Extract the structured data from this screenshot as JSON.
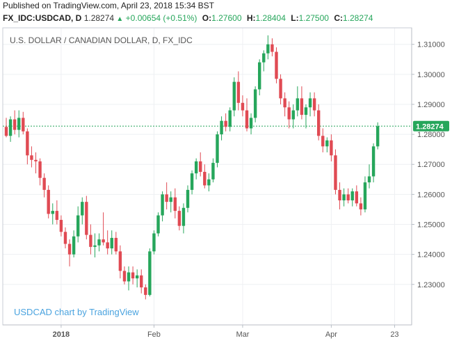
{
  "header": {
    "published": "Published on TradingView.com, April 23, 2018 15:34 BST",
    "symbol": "FX_IDC:USDCAD, D",
    "last": "1.28274",
    "change": "+0.00654 (+0.51%)",
    "open_label": "O:",
    "open": "1.27600",
    "high_label": "H:",
    "high": "1.28404",
    "low_label": "L:",
    "low": "1.27500",
    "close_label": "C:",
    "close": "1.28274"
  },
  "colors": {
    "up": "#26a65b",
    "down": "#e04a53",
    "grid": "#eef0f3",
    "axis": "#b8bec6",
    "price_line": "#26a65b"
  },
  "chart_data": {
    "type": "candlestick",
    "title": "U.S. DOLLAR / CANADIAN DOLLAR, D, FX_IDC",
    "watermark": "USDCAD chart by TradingView",
    "y_ticks": [
      "1.31000",
      "1.30000",
      "1.29000",
      "1.28000",
      "1.27000",
      "1.26000",
      "1.25000",
      "1.24000",
      "1.23000"
    ],
    "ylim": [
      1.2165,
      1.3155
    ],
    "x_labels": [
      "2018",
      "Feb",
      "Mar",
      "Apr",
      "23"
    ],
    "x_label_index": [
      13,
      35,
      56,
      77,
      92
    ],
    "last_price_label": "1.28274",
    "last_price": 1.28274,
    "candles": [
      [
        1.2825,
        1.2855,
        1.279,
        1.2795
      ],
      [
        1.2795,
        1.286,
        1.2775,
        1.285
      ],
      [
        1.285,
        1.288,
        1.28,
        1.2815
      ],
      [
        1.2815,
        1.288,
        1.279,
        1.2855
      ],
      [
        1.2855,
        1.2875,
        1.28,
        1.281
      ],
      [
        1.281,
        1.282,
        1.27,
        1.273
      ],
      [
        1.273,
        1.276,
        1.269,
        1.2715
      ],
      [
        1.2715,
        1.274,
        1.267,
        1.271
      ],
      [
        1.271,
        1.272,
        1.263,
        1.2655
      ],
      [
        1.2655,
        1.267,
        1.259,
        1.2615
      ],
      [
        1.2615,
        1.263,
        1.252,
        1.2535
      ],
      [
        1.2535,
        1.257,
        1.25,
        1.2545
      ],
      [
        1.2545,
        1.258,
        1.25,
        1.2515
      ],
      [
        1.2515,
        1.253,
        1.246,
        1.2475
      ],
      [
        1.2475,
        1.249,
        1.242,
        1.2435
      ],
      [
        1.2435,
        1.245,
        1.236,
        1.24
      ],
      [
        1.24,
        1.248,
        1.239,
        1.246
      ],
      [
        1.246,
        1.256,
        1.244,
        1.253
      ],
      [
        1.253,
        1.259,
        1.25,
        1.2575
      ],
      [
        1.2575,
        1.2595,
        1.245,
        1.2465
      ],
      [
        1.2465,
        1.25,
        1.24,
        1.2425
      ],
      [
        1.2425,
        1.247,
        1.239,
        1.243
      ],
      [
        1.243,
        1.247,
        1.241,
        1.245
      ],
      [
        1.245,
        1.254,
        1.243,
        1.244
      ],
      [
        1.244,
        1.248,
        1.24,
        1.242
      ],
      [
        1.242,
        1.248,
        1.24,
        1.2455
      ],
      [
        1.2455,
        1.2475,
        1.24,
        1.241
      ],
      [
        1.241,
        1.243,
        1.232,
        1.2345
      ],
      [
        1.2345,
        1.236,
        1.23,
        1.231
      ],
      [
        1.231,
        1.236,
        1.228,
        1.234
      ],
      [
        1.234,
        1.236,
        1.23,
        1.232
      ],
      [
        1.232,
        1.235,
        1.229,
        1.233
      ],
      [
        1.233,
        1.235,
        1.227,
        1.229
      ],
      [
        1.229,
        1.23,
        1.225,
        1.2265
      ],
      [
        1.2265,
        1.242,
        1.226,
        1.241
      ],
      [
        1.241,
        1.248,
        1.24,
        1.247
      ],
      [
        1.247,
        1.254,
        1.246,
        1.253
      ],
      [
        1.253,
        1.261,
        1.251,
        1.26
      ],
      [
        1.26,
        1.264,
        1.255,
        1.2575
      ],
      [
        1.2575,
        1.261,
        1.254,
        1.259
      ],
      [
        1.259,
        1.262,
        1.252,
        1.2545
      ],
      [
        1.2545,
        1.256,
        1.248,
        1.2495
      ],
      [
        1.2495,
        1.257,
        1.247,
        1.2555
      ],
      [
        1.2555,
        1.263,
        1.254,
        1.2615
      ],
      [
        1.2615,
        1.268,
        1.26,
        1.267
      ],
      [
        1.267,
        1.272,
        1.265,
        1.271
      ],
      [
        1.271,
        1.274,
        1.266,
        1.2675
      ],
      [
        1.2675,
        1.27,
        1.262,
        1.263
      ],
      [
        1.263,
        1.267,
        1.261,
        1.265
      ],
      [
        1.265,
        1.272,
        1.264,
        1.2705
      ],
      [
        1.2705,
        1.281,
        1.269,
        1.28
      ],
      [
        1.28,
        1.286,
        1.278,
        1.2845
      ],
      [
        1.2845,
        1.287,
        1.281,
        1.2825
      ],
      [
        1.2825,
        1.289,
        1.281,
        1.288
      ],
      [
        1.288,
        1.299,
        1.286,
        1.2975
      ],
      [
        1.2975,
        1.301,
        1.288,
        1.2905
      ],
      [
        1.2905,
        1.293,
        1.286,
        1.288
      ],
      [
        1.288,
        1.292,
        1.281,
        1.282
      ],
      [
        1.282,
        1.287,
        1.28,
        1.2855
      ],
      [
        1.2855,
        1.296,
        1.284,
        1.295
      ],
      [
        1.295,
        1.305,
        1.293,
        1.304
      ],
      [
        1.304,
        1.308,
        1.301,
        1.307
      ],
      [
        1.307,
        1.313,
        1.305,
        1.31
      ],
      [
        1.31,
        1.312,
        1.306,
        1.3075
      ],
      [
        1.3075,
        1.309,
        1.297,
        1.2985
      ],
      [
        1.2985,
        1.3,
        1.29,
        1.292
      ],
      [
        1.292,
        1.294,
        1.286,
        1.289
      ],
      [
        1.289,
        1.291,
        1.282,
        1.285
      ],
      [
        1.285,
        1.29,
        1.282,
        1.288
      ],
      [
        1.288,
        1.296,
        1.286,
        1.292
      ],
      [
        1.292,
        1.296,
        1.285,
        1.2865
      ],
      [
        1.2865,
        1.29,
        1.282,
        1.289
      ],
      [
        1.289,
        1.294,
        1.286,
        1.292
      ],
      [
        1.292,
        1.294,
        1.286,
        1.288
      ],
      [
        1.288,
        1.29,
        1.278,
        1.2795
      ],
      [
        1.2795,
        1.282,
        1.274,
        1.276
      ],
      [
        1.276,
        1.279,
        1.274,
        1.278
      ],
      [
        1.278,
        1.28,
        1.271,
        1.273
      ],
      [
        1.273,
        1.275,
        1.26,
        1.2615
      ],
      [
        1.2615,
        1.264,
        1.255,
        1.258
      ],
      [
        1.258,
        1.262,
        1.256,
        1.26
      ],
      [
        1.26,
        1.262,
        1.257,
        1.258
      ],
      [
        1.258,
        1.262,
        1.256,
        1.261
      ],
      [
        1.261,
        1.263,
        1.256,
        1.257
      ],
      [
        1.257,
        1.259,
        1.253,
        1.255
      ],
      [
        1.255,
        1.266,
        1.254,
        1.264
      ],
      [
        1.264,
        1.27,
        1.262,
        1.266
      ],
      [
        1.266,
        1.277,
        1.264,
        1.276
      ],
      [
        1.276,
        1.284,
        1.275,
        1.2827
      ]
    ]
  }
}
